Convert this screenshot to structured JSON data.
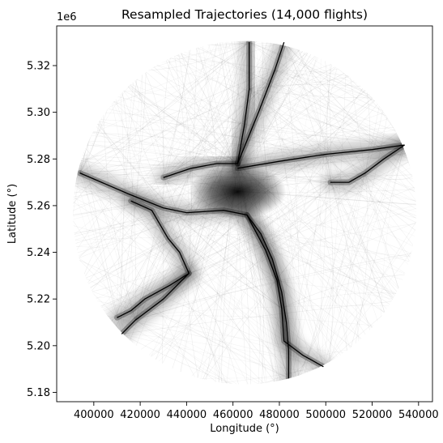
{
  "chart_data": {
    "type": "line",
    "title": "Resampled Trajectories (14,000 flights)",
    "xlabel": "Longitude (°)",
    "ylabel": "Latitude (°)",
    "offset_label": "1e6",
    "xlim": [
      384000,
      546000
    ],
    "ylim": [
      5176000,
      5337000
    ],
    "xticks": [
      400000,
      420000,
      440000,
      460000,
      480000,
      500000,
      520000,
      540000
    ],
    "xtick_labels": [
      "400000",
      "420000",
      "440000",
      "460000",
      "480000",
      "500000",
      "520000",
      "540000"
    ],
    "yticks": [
      5180000,
      5200000,
      5220000,
      5240000,
      5260000,
      5280000,
      5300000,
      5320000
    ],
    "ytick_labels": [
      "5.18",
      "5.20",
      "5.22",
      "5.24",
      "5.26",
      "5.28",
      "5.30",
      "5.32"
    ],
    "grid": false,
    "coverage_circle": {
      "center": [
        465000,
        5257000
      ],
      "radius": 74000
    },
    "hub": [
      462000,
      5266000
    ],
    "series": [
      {
        "style": "main",
        "points": [
          [
            394000,
            5274000
          ],
          [
            415000,
            5265000
          ],
          [
            430000,
            5259000
          ],
          [
            440000,
            5257000
          ],
          [
            456000,
            5258000
          ],
          [
            466000,
            5256000
          ],
          [
            472000,
            5248000
          ],
          [
            477000,
            5237000
          ],
          [
            481000,
            5223000
          ],
          [
            483000,
            5210000
          ],
          [
            484000,
            5198000
          ],
          [
            484000,
            5186000
          ]
        ]
      },
      {
        "style": "main",
        "points": [
          [
            466000,
            5256000
          ],
          [
            474000,
            5241000
          ],
          [
            479000,
            5228000
          ],
          [
            481000,
            5216000
          ],
          [
            482000,
            5202000
          ],
          [
            490000,
            5196000
          ],
          [
            499000,
            5191000
          ]
        ]
      },
      {
        "style": "main",
        "points": [
          [
            462000,
            5276000
          ],
          [
            480000,
            5279000
          ],
          [
            500000,
            5282000
          ],
          [
            520000,
            5284000
          ],
          [
            534000,
            5286000
          ]
        ]
      },
      {
        "style": "main",
        "points": [
          [
            534000,
            5286000
          ],
          [
            525000,
            5280000
          ],
          [
            517000,
            5274000
          ],
          [
            510000,
            5270000
          ],
          [
            502000,
            5270000
          ]
        ]
      },
      {
        "style": "main",
        "points": [
          [
            416000,
            5262000
          ],
          [
            425000,
            5258000
          ],
          [
            432000,
            5246000
          ],
          [
            437000,
            5240000
          ],
          [
            441000,
            5231000
          ],
          [
            433000,
            5226000
          ],
          [
            422000,
            5220000
          ],
          [
            416000,
            5215000
          ],
          [
            410000,
            5212000
          ]
        ]
      },
      {
        "style": "main",
        "points": [
          [
            441000,
            5231000
          ],
          [
            430000,
            5220000
          ],
          [
            418000,
            5211000
          ],
          [
            412000,
            5205000
          ]
        ]
      },
      {
        "style": "main",
        "points": [
          [
            462000,
            5278000
          ],
          [
            465000,
            5295000
          ],
          [
            467000,
            5310000
          ],
          [
            467000,
            5330000
          ]
        ]
      },
      {
        "style": "main",
        "points": [
          [
            462000,
            5278000
          ],
          [
            471000,
            5300000
          ],
          [
            478000,
            5318000
          ],
          [
            482000,
            5330000
          ]
        ]
      },
      {
        "style": "main",
        "points": [
          [
            430000,
            5272000
          ],
          [
            442000,
            5276000
          ],
          [
            453000,
            5278000
          ],
          [
            462000,
            5278000
          ]
        ]
      }
    ]
  }
}
